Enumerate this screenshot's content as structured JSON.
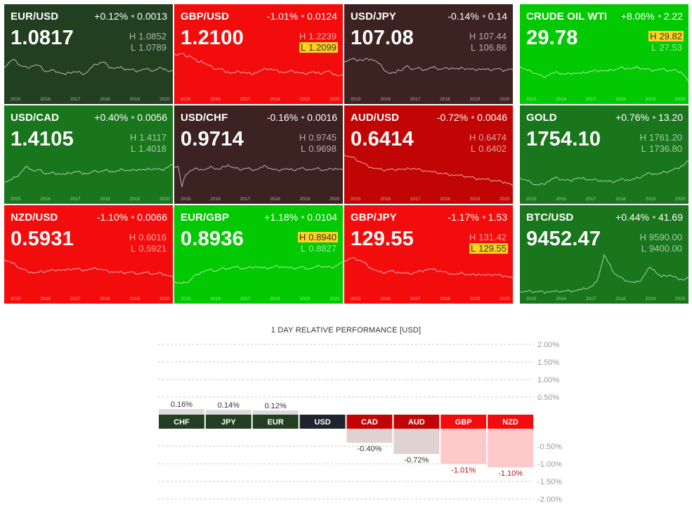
{
  "colors": {
    "dark_green": "#233f22",
    "green": "#19761c",
    "bright_green": "#02c902",
    "red": "#f30c0c",
    "dark_red": "#c10505",
    "brown": "#3d2222",
    "usd_navy": "#20242c",
    "highlight": "#ffd21f",
    "neg_red": "#c01010"
  },
  "years": [
    "2015",
    "2016",
    "2017",
    "2018",
    "2019",
    "2020"
  ],
  "tiles": [
    {
      "symbol": "EUR/USD",
      "change_pct": "+0.12%",
      "change_abs": "0.0013",
      "price": "1.0817",
      "high": "1.0852",
      "low": "1.0789",
      "flag": "",
      "color": "dark_green",
      "series": [
        58,
        66,
        72,
        72,
        63,
        60,
        58,
        61,
        63,
        62,
        55,
        50,
        52,
        53,
        50,
        47,
        44,
        48,
        50,
        49,
        48,
        46,
        52,
        60,
        64,
        68,
        69,
        62,
        58,
        57,
        58,
        56,
        55,
        54,
        53,
        52,
        54,
        55,
        53,
        52,
        55,
        58,
        56,
        50,
        52
      ]
    },
    {
      "symbol": "GBP/USD",
      "change_pct": "-1.01%",
      "change_abs": "0.0124",
      "price": "1.2100",
      "high": "1.2239",
      "low": "1.2099",
      "flag": "low",
      "color": "red",
      "series": [
        85,
        83,
        86,
        80,
        82,
        76,
        70,
        72,
        66,
        62,
        58,
        55,
        56,
        52,
        50,
        47,
        48,
        50,
        49,
        47,
        46,
        48,
        50,
        53,
        55,
        56,
        53,
        52,
        50,
        48,
        50,
        51,
        49,
        47,
        46,
        48,
        50,
        47,
        46,
        49,
        51,
        48,
        45,
        42,
        43
      ]
    },
    {
      "symbol": "USD/JPY",
      "change_pct": "-0.14%",
      "change_abs": "0.14",
      "price": "107.08",
      "high": "107.44",
      "low": "106.86",
      "flag": "",
      "color": "brown",
      "series": [
        70,
        72,
        75,
        73,
        74,
        72,
        76,
        75,
        72,
        66,
        58,
        50,
        46,
        48,
        54,
        52,
        60,
        58,
        55,
        57,
        56,
        54,
        56,
        58,
        57,
        55,
        56,
        57,
        58,
        56,
        55,
        57,
        56,
        55,
        54,
        56,
        55,
        54,
        53,
        55,
        56,
        54,
        53,
        55,
        54
      ]
    },
    {
      "symbol": "CRUDE OIL WTI",
      "change_pct": "+8.06%",
      "change_abs": "2.22",
      "price": "29.78",
      "high": "29.82",
      "low": "27.53",
      "flag": "high",
      "color": "bright_green",
      "series": [
        60,
        56,
        52,
        50,
        47,
        44,
        40,
        42,
        46,
        47,
        48,
        46,
        45,
        47,
        48,
        47,
        46,
        48,
        50,
        51,
        52,
        53,
        52,
        51,
        53,
        55,
        57,
        58,
        57,
        56,
        57,
        58,
        56,
        55,
        54,
        53,
        54,
        55,
        53,
        52,
        53,
        52,
        50,
        42,
        30
      ]
    },
    {
      "symbol": "USD/CAD",
      "change_pct": "+0.40%",
      "change_abs": "0.0056",
      "price": "1.4105",
      "high": "1.4117",
      "low": "1.4018",
      "flag": "",
      "color": "green",
      "series": [
        30,
        32,
        35,
        40,
        46,
        55,
        62,
        56,
        52,
        55,
        50,
        47,
        48,
        49,
        47,
        46,
        45,
        48,
        50,
        51,
        49,
        48,
        47,
        50,
        52,
        51,
        53,
        54,
        52,
        51,
        53,
        55,
        54,
        53,
        55,
        56,
        55,
        54,
        56,
        57,
        56,
        55,
        58,
        62,
        66
      ]
    },
    {
      "symbol": "USD/CHF",
      "change_pct": "-0.16%",
      "change_abs": "0.0016",
      "price": "0.9714",
      "high": "0.9745",
      "low": "0.9698",
      "flag": "",
      "color": "brown",
      "series": [
        60,
        62,
        20,
        45,
        52,
        55,
        58,
        56,
        55,
        58,
        60,
        57,
        56,
        62,
        65,
        60,
        58,
        55,
        57,
        58,
        56,
        55,
        57,
        60,
        62,
        58,
        55,
        54,
        56,
        57,
        55,
        54,
        56,
        58,
        57,
        56,
        55,
        57,
        56,
        54,
        55,
        57,
        58,
        56,
        55
      ]
    },
    {
      "symbol": "AUD/USD",
      "change_pct": "-0.72%",
      "change_abs": "0.0046",
      "price": "0.6414",
      "high": "0.6474",
      "low": "0.6402",
      "flag": "",
      "color": "dark_red",
      "series": [
        85,
        82,
        80,
        76,
        72,
        68,
        64,
        60,
        58,
        56,
        54,
        55,
        56,
        55,
        57,
        56,
        55,
        57,
        58,
        56,
        55,
        53,
        52,
        50,
        49,
        48,
        47,
        46,
        45,
        44,
        43,
        42,
        41,
        40,
        38,
        37,
        36,
        35,
        34,
        33,
        32,
        31,
        30,
        27,
        22
      ]
    },
    {
      "symbol": "GOLD",
      "change_pct": "+0.76%",
      "change_abs": "13.20",
      "price": "1754.10",
      "high": "1761.20",
      "low": "1736.80",
      "flag": "",
      "color": "green",
      "series": [
        38,
        35,
        32,
        28,
        25,
        24,
        26,
        30,
        34,
        38,
        37,
        35,
        34,
        33,
        36,
        38,
        37,
        36,
        35,
        34,
        35,
        33,
        32,
        31,
        30,
        32,
        34,
        36,
        35,
        34,
        36,
        38,
        42,
        46,
        48,
        47,
        46,
        48,
        50,
        52,
        55,
        58,
        62,
        66,
        74
      ]
    },
    {
      "symbol": "NZD/USD",
      "change_pct": "-1.10%",
      "change_abs": "0.0066",
      "price": "0.5931",
      "high": "0.6016",
      "low": "0.5921",
      "flag": "",
      "color": "red",
      "series": [
        75,
        72,
        68,
        64,
        58,
        55,
        52,
        50,
        48,
        49,
        50,
        52,
        53,
        54,
        55,
        54,
        53,
        55,
        57,
        56,
        55,
        54,
        55,
        56,
        57,
        56,
        54,
        52,
        51,
        50,
        49,
        48,
        49,
        50,
        48,
        47,
        48,
        49,
        47,
        46,
        47,
        48,
        45,
        42,
        40
      ]
    },
    {
      "symbol": "EUR/GBP",
      "change_pct": "+1.18%",
      "change_abs": "0.0104",
      "price": "0.8936",
      "high": "0.8940",
      "low": "0.8827",
      "flag": "high",
      "color": "bright_green",
      "series": [
        30,
        28,
        26,
        28,
        32,
        40,
        45,
        50,
        52,
        54,
        53,
        52,
        56,
        58,
        57,
        59,
        60,
        58,
        57,
        58,
        60,
        61,
        60,
        58,
        57,
        59,
        60,
        62,
        61,
        60,
        58,
        57,
        58,
        60,
        59,
        57,
        58,
        60,
        62,
        61,
        60,
        59,
        62,
        66,
        70
      ]
    },
    {
      "symbol": "GBP/JPY",
      "change_pct": "-1.17%",
      "change_abs": "1.53",
      "price": "129.55",
      "high": "131.42",
      "low": "129.55",
      "flag": "low",
      "color": "red",
      "series": [
        72,
        75,
        78,
        76,
        74,
        70,
        64,
        58,
        54,
        50,
        48,
        50,
        52,
        51,
        50,
        48,
        47,
        46,
        48,
        50,
        52,
        54,
        56,
        55,
        53,
        52,
        50,
        48,
        47,
        45,
        46,
        47,
        45,
        44,
        45,
        46,
        44,
        43,
        44,
        45,
        44,
        43,
        42,
        40,
        38
      ]
    },
    {
      "symbol": "BTC/USD",
      "change_pct": "+0.44%",
      "change_abs": "41.69",
      "price": "9452.47",
      "high": "9590.00",
      "low": "9400.00",
      "flag": "",
      "color": "green",
      "series": [
        10,
        10,
        10,
        10,
        10,
        10,
        10,
        10,
        10,
        10,
        10,
        11,
        11,
        12,
        12,
        13,
        14,
        16,
        18,
        22,
        30,
        55,
        85,
        70,
        55,
        45,
        40,
        36,
        32,
        30,
        28,
        30,
        38,
        50,
        60,
        55,
        45,
        40,
        42,
        44,
        40,
        38,
        36,
        34,
        40
      ]
    }
  ],
  "performance": {
    "title": "1 DAY RELATIVE PERFORMANCE  [USD]",
    "positive_ticks": [
      "2.00%",
      "1.50%",
      "1.00%",
      "0.50%"
    ],
    "negative_ticks": [
      "-0.50%",
      "-1.00%",
      "-1.50%",
      "-2.00%"
    ],
    "currencies": [
      {
        "code": "CHF",
        "value": 0.16,
        "label": "0.16%",
        "color": "dark_green"
      },
      {
        "code": "JPY",
        "value": 0.14,
        "label": "0.14%",
        "color": "dark_green"
      },
      {
        "code": "EUR",
        "value": 0.12,
        "label": "0.12%",
        "color": "dark_green"
      },
      {
        "code": "USD",
        "value": 0,
        "label": "",
        "color": "usd_navy"
      },
      {
        "code": "CAD",
        "value": -0.4,
        "label": "-0.40%",
        "color": "dark_red"
      },
      {
        "code": "AUD",
        "value": -0.72,
        "label": "-0.72%",
        "color": "dark_red"
      },
      {
        "code": "GBP",
        "value": -1.01,
        "label": "-1.01%",
        "color": "red"
      },
      {
        "code": "NZD",
        "value": -1.1,
        "label": "-1.10%",
        "color": "red"
      }
    ]
  }
}
